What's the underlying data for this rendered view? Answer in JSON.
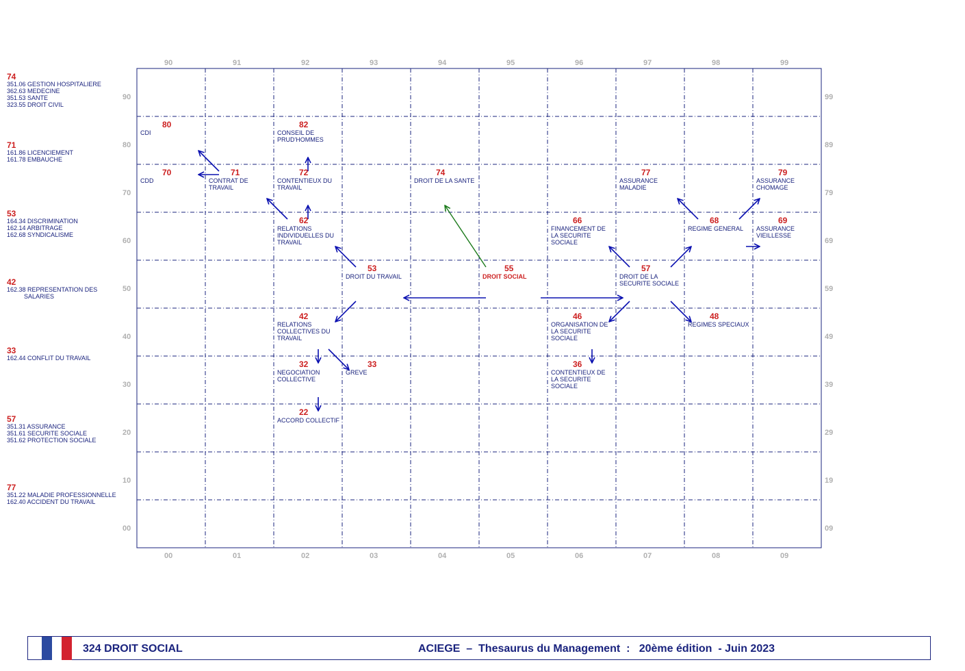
{
  "side_groups": [
    {
      "number": "74",
      "lines": [
        "351.06 GESTION HOSPITALIERE",
        "362.63 MEDECINE",
        "351.53 SANTE",
        "323.55 DROIT CIVIL"
      ]
    },
    {
      "number": "71",
      "lines": [
        "161.86 LICENCIEMENT",
        "161.78 EMBAUCHE"
      ]
    },
    {
      "number": "53",
      "lines": [
        "164.34 DISCRIMINATION",
        "162.14 ARBITRAGE",
        "162.68 SYNDICALISME"
      ]
    },
    {
      "number": "42",
      "lines": [
        "162.38 REPRESENTATION DES",
        "          SALARIES"
      ]
    },
    {
      "number": "33",
      "lines": [
        "162.44 CONFLIT DU TRAVAIL"
      ]
    },
    {
      "number": "57",
      "lines": [
        "351.31 ASSURANCE",
        "351.61 SECURITE SOCIALE",
        "351.62 PROTECTION SOCIALE"
      ]
    },
    {
      "number": "77",
      "lines": [
        "351.22 MALADIE PROFESSIONNELLE",
        "162.40 ACCIDENT DU TRAVAIL"
      ]
    }
  ],
  "axes": {
    "top": [
      "90",
      "91",
      "92",
      "93",
      "94",
      "95",
      "96",
      "97",
      "98",
      "99"
    ],
    "bottom": [
      "00",
      "01",
      "02",
      "03",
      "04",
      "05",
      "06",
      "07",
      "08",
      "09"
    ],
    "left": [
      "90",
      "80",
      "70",
      "60",
      "50",
      "40",
      "30",
      "20",
      "10",
      "00"
    ],
    "right": [
      "99",
      "89",
      "79",
      "69",
      "59",
      "49",
      "39",
      "29",
      "19",
      "09"
    ]
  },
  "nodes": [
    {
      "id": "cdi",
      "number": "80",
      "label": "CDI",
      "col": 0,
      "row": 1
    },
    {
      "id": "conseil-prudhommes",
      "number": "82",
      "label": "CONSEIL DE PRUD'HOMMES",
      "col": 2,
      "row": 1
    },
    {
      "id": "cdd",
      "number": "70",
      "label": "CDD",
      "col": 0,
      "row": 2
    },
    {
      "id": "contrat-travail",
      "number": "71",
      "label": "CONTRAT DE TRAVAIL",
      "col": 1,
      "row": 2
    },
    {
      "id": "contentieux-travail",
      "number": "72",
      "label": "CONTENTIEUX DU TRAVAIL",
      "col": 2,
      "row": 2
    },
    {
      "id": "droit-sante",
      "number": "74",
      "label": "DROIT DE LA SANTE",
      "col": 4,
      "row": 2
    },
    {
      "id": "assurance-maladie",
      "number": "77",
      "label": "ASSURANCE MALADIE",
      "col": 7,
      "row": 2
    },
    {
      "id": "assurance-chomage",
      "number": "79",
      "label": "ASSURANCE CHOMAGE",
      "col": 9,
      "row": 2
    },
    {
      "id": "relations-individuelles",
      "number": "62",
      "label": "RELATIONS INDIVIDUELLES DU TRAVAIL",
      "col": 2,
      "row": 3
    },
    {
      "id": "financement-secu",
      "number": "66",
      "label": "FINANCEMENT DE LA SECURITE SOCIALE",
      "col": 6,
      "row": 3
    },
    {
      "id": "regime-general",
      "number": "68",
      "label": "REGIME GENERAL",
      "col": 8,
      "row": 3
    },
    {
      "id": "assurance-vieillesse",
      "number": "69",
      "label": "ASSURANCE VIEILLESSE",
      "col": 9,
      "row": 3
    },
    {
      "id": "droit-travail",
      "number": "53",
      "label": "DROIT DU TRAVAIL",
      "col": 3,
      "row": 4
    },
    {
      "id": "droit-social",
      "number": "55",
      "label": "DROIT SOCIAL",
      "col": 5,
      "row": 4,
      "center": true
    },
    {
      "id": "droit-secu",
      "number": "57",
      "label": "DROIT DE LA SECURITE SOCIALE",
      "col": 7,
      "row": 4
    },
    {
      "id": "relations-collectives",
      "number": "42",
      "label": "RELATIONS COLLECTIVES DU TRAVAIL",
      "col": 2,
      "row": 5
    },
    {
      "id": "organisation-secu",
      "number": "46",
      "label": "ORGANISATION DE LA SECURITE SOCIALE",
      "col": 6,
      "row": 5
    },
    {
      "id": "regimes-speciaux",
      "number": "48",
      "label": "REGIMES SPECIAUX",
      "col": 8,
      "row": 5
    },
    {
      "id": "negociation-collective",
      "number": "32",
      "label": "NEGOCIATION COLLECTIVE",
      "col": 2,
      "row": 6
    },
    {
      "id": "greve",
      "number": "33",
      "label": "GREVE",
      "col": 3,
      "row": 6
    },
    {
      "id": "contentieux-secu",
      "number": "36",
      "label": "CONTENTIEUX DE LA SECURITE SOCIALE",
      "col": 6,
      "row": 6
    },
    {
      "id": "accord-collectif",
      "number": "22",
      "label": "ACCORD COLLECTIF",
      "col": 2,
      "row": 7
    }
  ],
  "colors": {
    "grid": "#1a237e",
    "arrow": "#0a10b0",
    "related_arrow": "#1a7a1a",
    "number": "#cc1f1f",
    "text": "#1a237e",
    "axis": "#b0b0b0"
  },
  "footer": {
    "left_text": "324  DROIT SOCIAL",
    "right_text": "ACIEGE  –  Thesaurus du Management  :   20ème édition  - Juin 2023",
    "flag_colors": [
      "#2c4aa0",
      "#ffffff",
      "#d3232f"
    ]
  }
}
